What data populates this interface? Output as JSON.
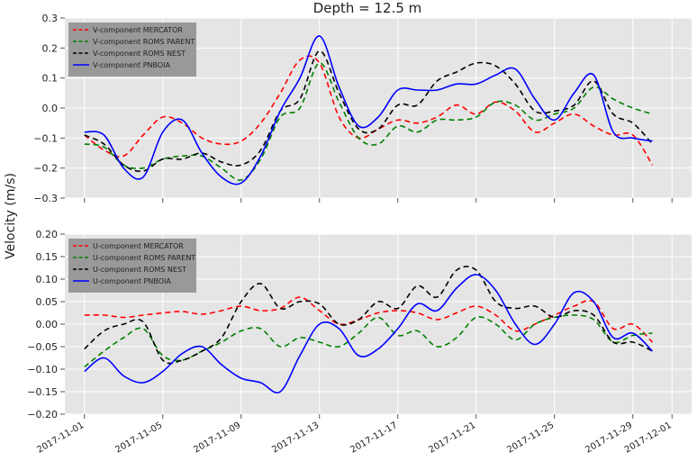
{
  "chart_data": [
    {
      "type": "line",
      "title": "Depth = 12.5 m",
      "ylabel": "Velocity (m/s)",
      "ylim": [
        -0.3,
        0.3
      ],
      "yticks": [
        -0.3,
        -0.2,
        -0.1,
        0.0,
        0.1,
        0.2,
        0.3
      ],
      "ytick_labels": [
        "−0.3",
        "−0.2",
        "−0.1",
        "0.0",
        "0.1",
        "0.2",
        "0.3"
      ],
      "xlim": [
        -1,
        31
      ],
      "grid": true,
      "legend_position": "top-left",
      "x": [
        0,
        1,
        2,
        3,
        4,
        5,
        6,
        7,
        8,
        9,
        10,
        11,
        12,
        13,
        14,
        15,
        16,
        17,
        18,
        19,
        20,
        21,
        22,
        23,
        24,
        25,
        26,
        27,
        28,
        29
      ],
      "series": [
        {
          "name": "V-component MERCATOR",
          "color": "#ff0000",
          "dash": "dashed",
          "values": [
            -0.09,
            -0.14,
            -0.16,
            -0.09,
            -0.03,
            -0.05,
            -0.1,
            -0.12,
            -0.11,
            -0.05,
            0.05,
            0.16,
            0.15,
            -0.03,
            -0.1,
            -0.07,
            -0.04,
            -0.05,
            -0.03,
            0.01,
            -0.02,
            0.02,
            -0.01,
            -0.08,
            -0.05,
            -0.02,
            -0.06,
            -0.09,
            -0.09,
            -0.19
          ]
        },
        {
          "name": "V-component ROMS PARENT",
          "color": "#008000",
          "dash": "dashed",
          "values": [
            -0.12,
            -0.13,
            -0.19,
            -0.2,
            -0.17,
            -0.16,
            -0.16,
            -0.2,
            -0.24,
            -0.17,
            -0.03,
            0.0,
            0.15,
            0.02,
            -0.1,
            -0.12,
            -0.06,
            -0.08,
            -0.04,
            -0.04,
            -0.03,
            0.02,
            0.01,
            -0.04,
            -0.02,
            0.0,
            0.07,
            0.03,
            0.0,
            -0.02
          ]
        },
        {
          "name": "V-component ROMS NEST",
          "color": "#000000",
          "dash": "dashed",
          "values": [
            -0.09,
            -0.12,
            -0.19,
            -0.21,
            -0.17,
            -0.17,
            -0.15,
            -0.18,
            -0.19,
            -0.14,
            -0.01,
            0.03,
            0.19,
            0.05,
            -0.07,
            -0.07,
            0.01,
            0.01,
            0.09,
            0.12,
            0.15,
            0.14,
            0.08,
            -0.01,
            -0.01,
            0.01,
            0.09,
            -0.02,
            -0.05,
            -0.12
          ]
        },
        {
          "name": "V-component PNBOIA",
          "color": "#0000ff",
          "dash": "solid",
          "values": [
            -0.08,
            -0.09,
            -0.2,
            -0.23,
            -0.08,
            -0.04,
            -0.15,
            -0.23,
            -0.25,
            -0.16,
            -0.01,
            0.1,
            0.24,
            0.07,
            -0.06,
            -0.03,
            0.06,
            0.06,
            0.06,
            0.08,
            0.08,
            0.11,
            0.13,
            0.03,
            -0.04,
            0.05,
            0.11,
            -0.08,
            -0.1,
            -0.11
          ]
        }
      ]
    },
    {
      "type": "line",
      "ylabel": "Velocity (m/s)",
      "xlabel": "",
      "ylim": [
        -0.2,
        0.2
      ],
      "yticks": [
        -0.2,
        -0.15,
        -0.1,
        -0.05,
        0.0,
        0.05,
        0.1,
        0.15,
        0.2
      ],
      "ytick_labels": [
        "−0.20",
        "−0.15",
        "−0.10",
        "−0.05",
        "0.00",
        "0.05",
        "0.10",
        "0.15",
        "0.20"
      ],
      "xlim": [
        -1,
        31
      ],
      "xticks": [
        0,
        4,
        8,
        12,
        16,
        20,
        24,
        28,
        30
      ],
      "xtick_labels": [
        "2017-11-01",
        "2017-11-05",
        "2017-11-09",
        "2017-11-13",
        "2017-11-17",
        "2017-11-21",
        "2017-11-25",
        "2017-11-29",
        "2017-12-01"
      ],
      "grid": true,
      "legend_position": "top-left",
      "x": [
        0,
        1,
        2,
        3,
        4,
        5,
        6,
        7,
        8,
        9,
        10,
        11,
        12,
        13,
        14,
        15,
        16,
        17,
        18,
        19,
        20,
        21,
        22,
        23,
        24,
        25,
        26,
        27,
        28,
        29
      ],
      "series": [
        {
          "name": "U-component MERCATOR",
          "color": "#ff0000",
          "dash": "dashed",
          "values": [
            0.02,
            0.02,
            0.015,
            0.02,
            0.025,
            0.028,
            0.022,
            0.03,
            0.04,
            0.03,
            0.035,
            0.06,
            0.03,
            0.0,
            0.01,
            0.025,
            0.03,
            0.025,
            0.01,
            0.025,
            0.04,
            0.02,
            -0.015,
            0.0,
            0.02,
            0.04,
            0.05,
            -0.01,
            0.0,
            -0.04
          ]
        },
        {
          "name": "U-component ROMS PARENT",
          "color": "#008000",
          "dash": "dashed",
          "values": [
            -0.095,
            -0.06,
            -0.03,
            -0.01,
            -0.07,
            -0.08,
            -0.06,
            -0.04,
            -0.015,
            -0.01,
            -0.05,
            -0.03,
            -0.04,
            -0.05,
            -0.02,
            0.015,
            -0.025,
            -0.015,
            -0.05,
            -0.03,
            0.015,
            0.0,
            -0.035,
            0.0,
            0.015,
            0.02,
            0.01,
            -0.04,
            -0.025,
            -0.02
          ]
        },
        {
          "name": "U-component ROMS NEST",
          "color": "#000000",
          "dash": "dashed",
          "values": [
            -0.055,
            -0.015,
            0.0,
            0.005,
            -0.08,
            -0.08,
            -0.06,
            -0.03,
            0.05,
            0.09,
            0.035,
            0.05,
            0.045,
            0.0,
            0.01,
            0.05,
            0.035,
            0.085,
            0.06,
            0.12,
            0.12,
            0.05,
            0.035,
            0.04,
            0.015,
            0.03,
            0.02,
            -0.04,
            -0.04,
            -0.06
          ]
        },
        {
          "name": "U-component PNBOIA",
          "color": "#0000ff",
          "dash": "solid",
          "values": [
            -0.105,
            -0.075,
            -0.115,
            -0.13,
            -0.105,
            -0.065,
            -0.05,
            -0.09,
            -0.12,
            -0.13,
            -0.15,
            -0.07,
            0.0,
            -0.01,
            -0.07,
            -0.055,
            -0.01,
            0.045,
            0.03,
            0.08,
            0.11,
            0.075,
            0.0,
            -0.045,
            0.0,
            0.07,
            0.05,
            -0.03,
            -0.02,
            -0.06
          ]
        }
      ]
    }
  ]
}
